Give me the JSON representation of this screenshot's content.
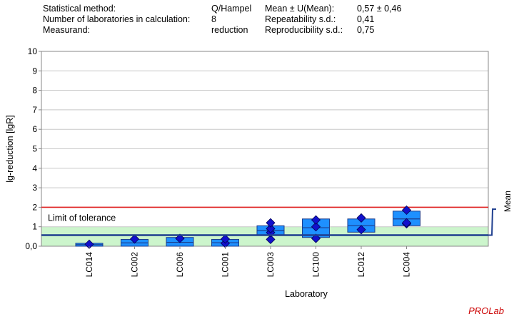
{
  "header": {
    "col1": [
      "Statistical method:",
      "Number of laboratories in calculation:",
      "Measurand:"
    ],
    "col2": [
      "Q/Hampel",
      "8",
      "reduction"
    ],
    "col3": [
      "Mean ± U(Mean):",
      "Repeatability s.d.:",
      "Reproducibility s.d.:"
    ],
    "col4": [
      "0,57 ± 0,46",
      "0,41",
      "0,75"
    ]
  },
  "brand": "PROLab",
  "chart_data": {
    "type": "box",
    "ylabel": "lg-reduction [lgR]",
    "xlabel": "Laboratory",
    "ylim": [
      0,
      10
    ],
    "yticks": [
      0,
      1,
      2,
      3,
      4,
      5,
      6,
      7,
      8,
      9,
      10
    ],
    "ytick_labels": [
      "0,0",
      "1",
      "2",
      "3",
      "4",
      "5",
      "6",
      "7",
      "8",
      "9",
      "10"
    ],
    "categories": [
      "LC014",
      "LC002",
      "LC006",
      "LC001",
      "LC003",
      "LC100",
      "LC012",
      "LC004"
    ],
    "boxes": [
      {
        "low": 0.0,
        "high": 0.15,
        "median": 0.08
      },
      {
        "low": 0.0,
        "high": 0.35,
        "median": 0.17
      },
      {
        "low": 0.0,
        "high": 0.45,
        "median": 0.2
      },
      {
        "low": 0.0,
        "high": 0.35,
        "median": 0.18
      },
      {
        "low": 0.55,
        "high": 1.05,
        "median": 0.8
      },
      {
        "low": 0.45,
        "high": 1.4,
        "median": 0.95
      },
      {
        "low": 0.72,
        "high": 1.4,
        "median": 1.05
      },
      {
        "low": 1.05,
        "high": 1.8,
        "median": 1.4
      }
    ],
    "points": [
      [
        0.1
      ],
      [
        0.37
      ],
      [
        0.4
      ],
      [
        0.15,
        0.37
      ],
      [
        0.35,
        0.7,
        0.9,
        1.2
      ],
      [
        0.4,
        1.0,
        1.35
      ],
      [
        0.85,
        1.45
      ],
      [
        1.15,
        1.2,
        1.85
      ]
    ],
    "mean": 0.57,
    "mean_label": "Mean",
    "tolerance_band": [
      0,
      1.0
    ],
    "tolerance_label": "Limit of tolerance",
    "limit_line": 2.0,
    "grid": true,
    "colors": {
      "box": "#1e90ff",
      "box_edge": "#1c3d8c",
      "point": "#1111cc",
      "mean": "#1f3f8f",
      "band": "#ccf5cc",
      "limit": "#e02020",
      "grid": "#c8c8c8",
      "axis": "#888888"
    }
  }
}
